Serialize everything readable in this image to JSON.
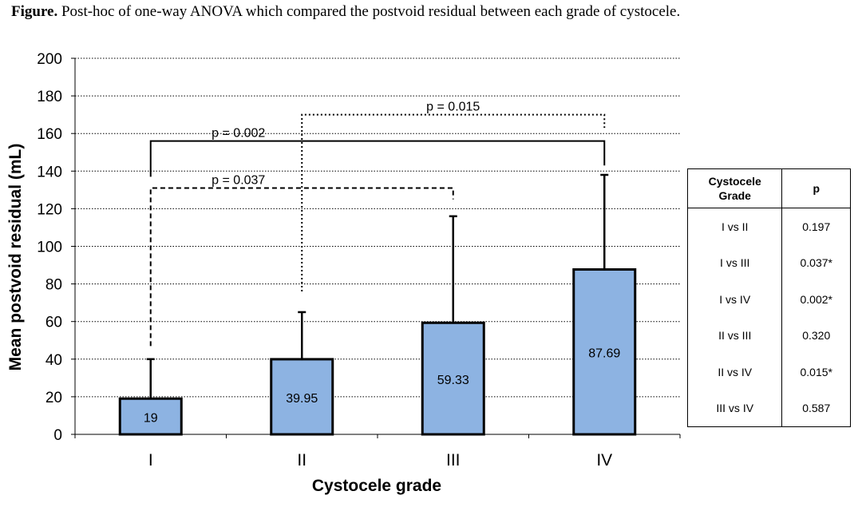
{
  "caption": {
    "label": "Figure.",
    "text": "Post-hoc of one-way ANOVA which compared the postvoid residual between each grade of cystocele."
  },
  "chart_data": {
    "type": "bar",
    "categories": [
      "I",
      "II",
      "III",
      "IV"
    ],
    "values": [
      19,
      39.95,
      59.33,
      87.69
    ],
    "value_labels": [
      "19",
      "39.95",
      "59.33",
      "87.69"
    ],
    "error_upper": [
      40,
      65,
      116,
      138
    ],
    "xlabel": "Cystocele grade",
    "ylabel": "Mean postvoid residual (mL)",
    "ylim": [
      0,
      200
    ],
    "yticks": [
      0,
      20,
      40,
      60,
      80,
      100,
      120,
      140,
      160,
      180,
      200
    ],
    "grid": "horizontal dotted",
    "bar_color": "#8DB3E2",
    "brackets": [
      {
        "from": "I",
        "to": "III",
        "label": "p = 0.037",
        "style": "dashed",
        "y": 131,
        "drop_from": 47,
        "drop_to": 125
      },
      {
        "from": "I",
        "to": "IV",
        "label": "p = 0.002",
        "style": "solid",
        "y": 156,
        "drop_from": 137,
        "drop_to": 143
      },
      {
        "from": "II",
        "to": "IV",
        "label": "p = 0.015",
        "style": "dotted",
        "y": 170,
        "drop_from": 76,
        "drop_to": 163
      }
    ]
  },
  "table": {
    "headers": [
      "Cystocele\nGrade",
      "p"
    ],
    "header_line1": "Cystocele",
    "header_line2": "Grade",
    "header_p": "p",
    "rows": [
      {
        "grade": "I  vs  II",
        "p": "0.197"
      },
      {
        "grade": "I  vs  III",
        "p": "0.037*"
      },
      {
        "grade": "I  vs  IV",
        "p": "0.002*"
      },
      {
        "grade": "II  vs  III",
        "p": "0.320"
      },
      {
        "grade": "II  vs  IV",
        "p": "0.015*"
      },
      {
        "grade": "III  vs  IV",
        "p": "0.587"
      }
    ]
  }
}
